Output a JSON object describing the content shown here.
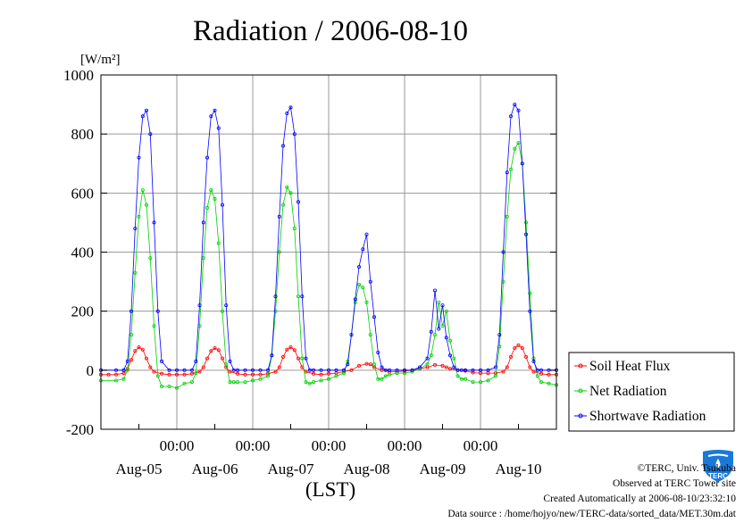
{
  "chart_data": {
    "type": "line",
    "title": "Radiation / 2006-08-10",
    "unit_label": "[W/m²]",
    "xlabel": "(LST)",
    "ylim": [
      -200,
      1000
    ],
    "y_ticks": [
      -200,
      0,
      200,
      400,
      600,
      800,
      1000
    ],
    "x_range_days": [
      -0.5,
      5.5
    ],
    "time_tick_label": "00:00",
    "time_ticks": [
      0.5,
      1.5,
      2.5,
      3.5,
      4.5
    ],
    "date_labels": [
      {
        "at": 0,
        "text": "Aug-05"
      },
      {
        "at": 1,
        "text": "Aug-06"
      },
      {
        "at": 2,
        "text": "Aug-07"
      },
      {
        "at": 3,
        "text": "Aug-08"
      },
      {
        "at": 4,
        "text": "Aug-09"
      },
      {
        "at": 5,
        "text": "Aug-10"
      }
    ],
    "grid": true,
    "legend_position": "right",
    "series": [
      {
        "name": "Soil Heat Flux",
        "color": "#ff0000",
        "x": [
          -0.5,
          -0.4,
          -0.3,
          -0.2,
          -0.15,
          -0.1,
          -0.05,
          0,
          0.05,
          0.1,
          0.15,
          0.2,
          0.3,
          0.4,
          0.5,
          0.6,
          0.7,
          0.8,
          0.85,
          0.9,
          0.95,
          1,
          1.05,
          1.1,
          1.15,
          1.2,
          1.3,
          1.4,
          1.5,
          1.6,
          1.7,
          1.8,
          1.85,
          1.9,
          1.95,
          2,
          2.05,
          2.1,
          2.15,
          2.2,
          2.3,
          2.4,
          2.5,
          2.6,
          2.7,
          2.8,
          2.9,
          3,
          3.05,
          3.1,
          3.2,
          3.3,
          3.4,
          3.5,
          3.6,
          3.7,
          3.8,
          3.9,
          4,
          4.05,
          4.1,
          4.2,
          4.3,
          4.4,
          4.5,
          4.6,
          4.7,
          4.8,
          4.85,
          4.9,
          4.95,
          5,
          5.05,
          5.1,
          5.15,
          5.2,
          5.3,
          5.4,
          5.5
        ],
        "y": [
          -15,
          -15,
          -15,
          -10,
          5,
          35,
          65,
          78,
          70,
          40,
          10,
          -5,
          -12,
          -15,
          -15,
          -15,
          -12,
          -5,
          10,
          40,
          65,
          75,
          68,
          40,
          10,
          -5,
          -12,
          -15,
          -15,
          -15,
          -12,
          -5,
          10,
          45,
          70,
          78,
          68,
          40,
          10,
          -5,
          -12,
          -15,
          -12,
          -10,
          -5,
          0,
          15,
          22,
          20,
          10,
          0,
          -5,
          -5,
          -3,
          0,
          5,
          10,
          18,
          15,
          10,
          5,
          0,
          -2,
          -8,
          -10,
          -10,
          -10,
          -5,
          10,
          45,
          75,
          85,
          75,
          45,
          10,
          -5,
          -12,
          -15,
          -15
        ]
      },
      {
        "name": "Net Radiation",
        "color": "#00d000",
        "x": [
          -0.5,
          -0.3,
          -0.2,
          -0.15,
          -0.1,
          -0.05,
          0,
          0.05,
          0.1,
          0.15,
          0.2,
          0.25,
          0.3,
          0.4,
          0.5,
          0.6,
          0.7,
          0.75,
          0.8,
          0.85,
          0.9,
          0.95,
          1,
          1.05,
          1.1,
          1.15,
          1.2,
          1.25,
          1.3,
          1.4,
          1.5,
          1.6,
          1.7,
          1.75,
          1.8,
          1.85,
          1.9,
          1.95,
          2,
          2.05,
          2.1,
          2.15,
          2.2,
          2.25,
          2.3,
          2.4,
          2.5,
          2.6,
          2.7,
          2.75,
          2.8,
          2.85,
          2.9,
          2.95,
          3,
          3.05,
          3.1,
          3.15,
          3.2,
          3.25,
          3.3,
          3.4,
          3.5,
          3.6,
          3.7,
          3.8,
          3.85,
          3.9,
          3.95,
          4,
          4.05,
          4.1,
          4.15,
          4.2,
          4.25,
          4.3,
          4.4,
          4.5,
          4.6,
          4.7,
          4.75,
          4.8,
          4.85,
          4.9,
          4.95,
          5,
          5.05,
          5.1,
          5.15,
          5.2,
          5.25,
          5.3,
          5.4,
          5.5
        ],
        "y": [
          -35,
          -35,
          -30,
          0,
          120,
          330,
          520,
          610,
          560,
          380,
          150,
          -20,
          -55,
          -55,
          -60,
          -45,
          -40,
          -10,
          150,
          380,
          550,
          610,
          580,
          430,
          200,
          20,
          -40,
          -40,
          -40,
          -40,
          -35,
          -30,
          -20,
          50,
          200,
          400,
          560,
          620,
          600,
          480,
          250,
          40,
          -40,
          -45,
          -40,
          -35,
          -30,
          -20,
          -10,
          30,
          120,
          230,
          290,
          280,
          230,
          120,
          20,
          -30,
          -30,
          -20,
          -15,
          -10,
          -10,
          -5,
          5,
          20,
          50,
          120,
          230,
          150,
          200,
          100,
          40,
          -20,
          -30,
          -30,
          -40,
          -40,
          -35,
          -20,
          80,
          300,
          520,
          680,
          750,
          770,
          700,
          500,
          260,
          40,
          -20,
          -40,
          -45,
          -50
        ]
      },
      {
        "name": "Shortwave Radiation",
        "color": "#0000ff",
        "x": [
          -0.5,
          -0.3,
          -0.2,
          -0.15,
          -0.1,
          -0.05,
          0,
          0.05,
          0.1,
          0.15,
          0.2,
          0.25,
          0.3,
          0.4,
          0.5,
          0.6,
          0.7,
          0.75,
          0.8,
          0.85,
          0.9,
          0.95,
          1,
          1.05,
          1.1,
          1.15,
          1.2,
          1.25,
          1.3,
          1.4,
          1.5,
          1.6,
          1.7,
          1.75,
          1.8,
          1.85,
          1.9,
          1.95,
          2,
          2.05,
          2.1,
          2.15,
          2.2,
          2.25,
          2.3,
          2.4,
          2.5,
          2.6,
          2.7,
          2.75,
          2.8,
          2.85,
          2.9,
          2.95,
          3,
          3.05,
          3.1,
          3.15,
          3.2,
          3.25,
          3.3,
          3.4,
          3.5,
          3.6,
          3.7,
          3.8,
          3.85,
          3.9,
          3.95,
          4,
          4.05,
          4.1,
          4.15,
          4.2,
          4.25,
          4.3,
          4.4,
          4.5,
          4.6,
          4.7,
          4.75,
          4.8,
          4.85,
          4.9,
          4.95,
          5,
          5.05,
          5.1,
          5.15,
          5.2,
          5.25,
          5.3,
          5.4,
          5.5
        ],
        "y": [
          0,
          0,
          0,
          30,
          200,
          480,
          720,
          860,
          880,
          800,
          500,
          200,
          30,
          0,
          0,
          0,
          0,
          30,
          220,
          500,
          720,
          860,
          880,
          820,
          560,
          220,
          30,
          0,
          0,
          0,
          0,
          0,
          0,
          50,
          250,
          520,
          760,
          870,
          890,
          800,
          570,
          250,
          40,
          0,
          0,
          0,
          0,
          0,
          0,
          20,
          120,
          240,
          350,
          410,
          460,
          300,
          180,
          60,
          10,
          0,
          0,
          0,
          0,
          0,
          10,
          40,
          130,
          270,
          140,
          220,
          110,
          50,
          10,
          0,
          0,
          0,
          0,
          0,
          0,
          10,
          120,
          400,
          670,
          860,
          900,
          880,
          700,
          460,
          200,
          30,
          0,
          0,
          0,
          0
        ]
      }
    ]
  },
  "footer": {
    "copyright": "©TERC, Univ. Tsukuba",
    "observed": "Observed at TERC Tower site",
    "created": "Created Automatically at 2006-08-10/23:32:10",
    "source": "Data source : /home/hojyo/new/TERC-data/sorted_data/MET.30m.dat"
  },
  "logo": {
    "text": "TERC",
    "color": "#0a6fd0"
  }
}
